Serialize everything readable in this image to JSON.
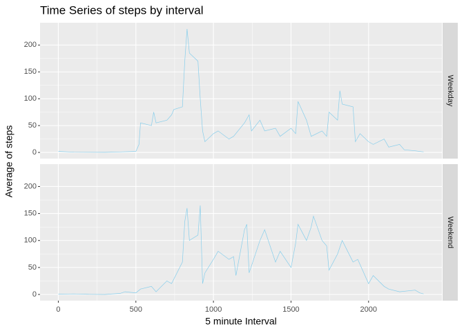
{
  "chart_data": {
    "type": "line",
    "title": "Time Series of steps by interval",
    "xlabel": "5 minute Interval",
    "ylabel": "Average of steps",
    "xlim": [
      -117.75,
      2472.75
    ],
    "ylim": [
      -11.5,
      241.5
    ],
    "xticks": [
      0,
      500,
      1000,
      1500,
      2000
    ],
    "yticks": [
      0,
      50,
      100,
      150,
      200
    ],
    "grid": true,
    "series": [
      {
        "name": "Weekday",
        "color": "#87ceeb",
        "x": [
          0,
          100,
          200,
          300,
          400,
          500,
          520,
          530,
          600,
          615,
          630,
          700,
          730,
          745,
          800,
          815,
          830,
          845,
          900,
          915,
          930,
          945,
          1000,
          1030,
          1100,
          1130,
          1200,
          1230,
          1245,
          1300,
          1330,
          1400,
          1430,
          1500,
          1530,
          1545,
          1600,
          1630,
          1700,
          1730,
          1745,
          1800,
          1815,
          1830,
          1900,
          1915,
          1945,
          2000,
          2030,
          2100,
          2130,
          2200,
          2230,
          2300,
          2355
        ],
        "values": [
          2,
          0.5,
          0.3,
          0.2,
          1,
          2,
          15,
          55,
          50,
          75,
          55,
          60,
          70,
          80,
          85,
          170,
          230,
          185,
          170,
          100,
          40,
          20,
          35,
          40,
          25,
          30,
          55,
          70,
          40,
          60,
          40,
          45,
          30,
          45,
          35,
          95,
          60,
          30,
          40,
          30,
          75,
          60,
          115,
          90,
          85,
          20,
          35,
          20,
          15,
          25,
          10,
          15,
          5,
          3,
          1
        ]
      },
      {
        "name": "Weekend",
        "color": "#87ceeb",
        "x": [
          0,
          100,
          200,
          300,
          400,
          430,
          500,
          530,
          600,
          630,
          700,
          730,
          800,
          815,
          830,
          845,
          900,
          915,
          930,
          945,
          1000,
          1030,
          1100,
          1130,
          1145,
          1200,
          1215,
          1230,
          1300,
          1330,
          1400,
          1430,
          1500,
          1530,
          1545,
          1600,
          1630,
          1645,
          1700,
          1730,
          1745,
          1800,
          1830,
          1900,
          1930,
          2000,
          2030,
          2100,
          2130,
          2200,
          2300,
          2330,
          2355
        ],
        "values": [
          0.5,
          1,
          0.2,
          0,
          2,
          5,
          3,
          10,
          15,
          5,
          25,
          20,
          60,
          135,
          160,
          100,
          110,
          165,
          20,
          40,
          65,
          80,
          65,
          70,
          35,
          120,
          130,
          40,
          100,
          120,
          60,
          80,
          50,
          95,
          130,
          100,
          125,
          145,
          100,
          90,
          45,
          75,
          100,
          60,
          65,
          20,
          35,
          15,
          10,
          5,
          8,
          3,
          1
        ]
      }
    ]
  }
}
